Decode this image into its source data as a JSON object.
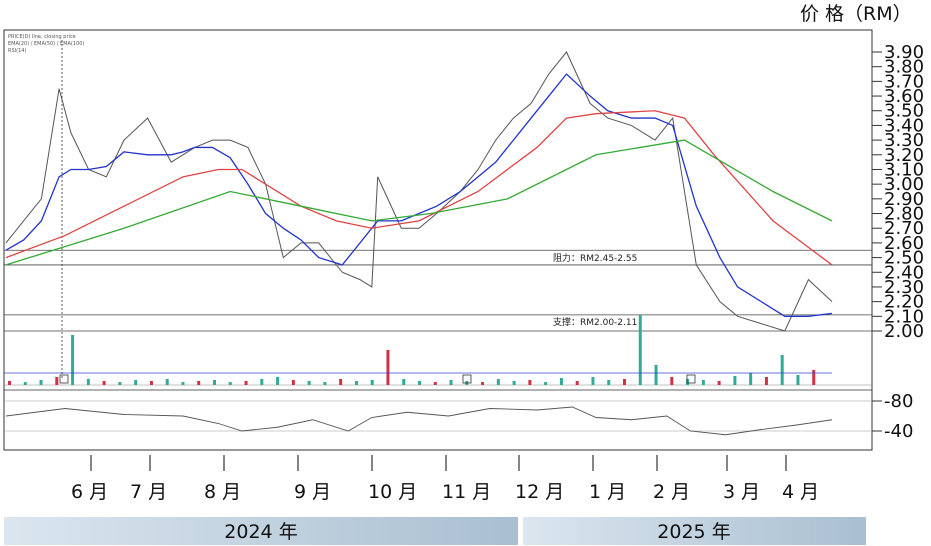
{
  "chart_data": {
    "type": "line",
    "unit_label": "价 格（RM）",
    "y_ticks": [
      "3.90",
      "3.80",
      "3.70",
      "3.60",
      "3.50",
      "3.40",
      "3.30",
      "3.20",
      "3.10",
      "3.00",
      "2.90",
      "2.80",
      "2.70",
      "2.60",
      "2.50",
      "2.40",
      "2.30",
      "2.20",
      "2.10",
      "2.00"
    ],
    "ylim": [
      2.0,
      3.9
    ],
    "rsi_ticks": [
      "80",
      "40"
    ],
    "months": [
      "6 月",
      "7 月",
      "8 月",
      "9 月",
      "10 月",
      "11 月",
      "12 月",
      "1 月",
      "2 月",
      "3 月",
      "4 月"
    ],
    "years": [
      "2024 年",
      "2025 年"
    ],
    "resistance": {
      "label": "阻力：RM2.45-2.55",
      "low": 2.45,
      "high": 2.55
    },
    "support": {
      "label": "支撑：RM2.00-2.11",
      "low": 2.0,
      "high": 2.11
    },
    "legend_lines": [
      "PRICE(D) line, closing price",
      "EMA(20) / EMA(50) / EMA(100)",
      "RSI(14)"
    ],
    "series": [
      {
        "name": "Close",
        "color": "#555555",
        "x": [
          0,
          3,
          6,
          9,
          11,
          14,
          17,
          20,
          24,
          28,
          30,
          32,
          35,
          38,
          41,
          44,
          47,
          50,
          53,
          57,
          60,
          62,
          63,
          67,
          70,
          73,
          77,
          80,
          83,
          86,
          89,
          92,
          95,
          99,
          102,
          106,
          110,
          113,
          117,
          121,
          124,
          128,
          132,
          136,
          140
        ],
        "values": [
          2.6,
          2.75,
          2.9,
          3.65,
          3.35,
          3.1,
          3.05,
          3.3,
          3.45,
          3.15,
          3.2,
          3.25,
          3.3,
          3.3,
          3.25,
          3.0,
          2.5,
          2.6,
          2.6,
          2.4,
          2.35,
          2.3,
          3.05,
          2.7,
          2.7,
          2.8,
          2.95,
          3.1,
          3.3,
          3.45,
          3.55,
          3.75,
          3.9,
          3.55,
          3.45,
          3.4,
          3.3,
          3.45,
          2.45,
          2.2,
          2.1,
          2.05,
          2.0,
          2.35,
          2.2
        ]
      },
      {
        "name": "EMA(20)",
        "color": "#2233cc",
        "x": [
          0,
          3,
          6,
          9,
          11,
          14,
          17,
          20,
          24,
          28,
          30,
          32,
          35,
          38,
          41,
          44,
          47,
          50,
          53,
          57,
          60,
          62,
          63,
          67,
          70,
          73,
          77,
          80,
          83,
          86,
          89,
          92,
          95,
          99,
          102,
          106,
          110,
          113,
          117,
          121,
          124,
          128,
          132,
          136,
          140
        ],
        "values": [
          2.55,
          2.62,
          2.75,
          3.05,
          3.1,
          3.1,
          3.12,
          3.22,
          3.2,
          3.2,
          3.22,
          3.25,
          3.25,
          3.18,
          3.0,
          2.8,
          2.7,
          2.62,
          2.5,
          2.45,
          2.6,
          2.7,
          2.75,
          2.75,
          2.8,
          2.85,
          2.95,
          3.05,
          3.15,
          3.3,
          3.45,
          3.6,
          3.75,
          3.6,
          3.5,
          3.45,
          3.45,
          3.4,
          2.85,
          2.5,
          2.3,
          2.2,
          2.1,
          2.1,
          2.12
        ]
      },
      {
        "name": "EMA(50)",
        "color": "#dd4444",
        "x": [
          0,
          10,
          20,
          30,
          36,
          40,
          44,
          50,
          56,
          62,
          70,
          80,
          90,
          95,
          100,
          110,
          115,
          120,
          130,
          140
        ],
        "values": [
          2.5,
          2.65,
          2.85,
          3.05,
          3.1,
          3.1,
          3.0,
          2.85,
          2.75,
          2.7,
          2.75,
          2.95,
          3.25,
          3.45,
          3.48,
          3.5,
          3.45,
          3.2,
          2.75,
          2.45
        ]
      },
      {
        "name": "EMA(100)",
        "color": "#33aa33",
        "x": [
          0,
          20,
          38,
          50,
          62,
          72,
          85,
          100,
          115,
          130,
          140
        ],
        "values": [
          2.45,
          2.7,
          2.95,
          2.85,
          2.75,
          2.8,
          2.9,
          3.2,
          3.3,
          2.95,
          2.75
        ]
      }
    ]
  }
}
